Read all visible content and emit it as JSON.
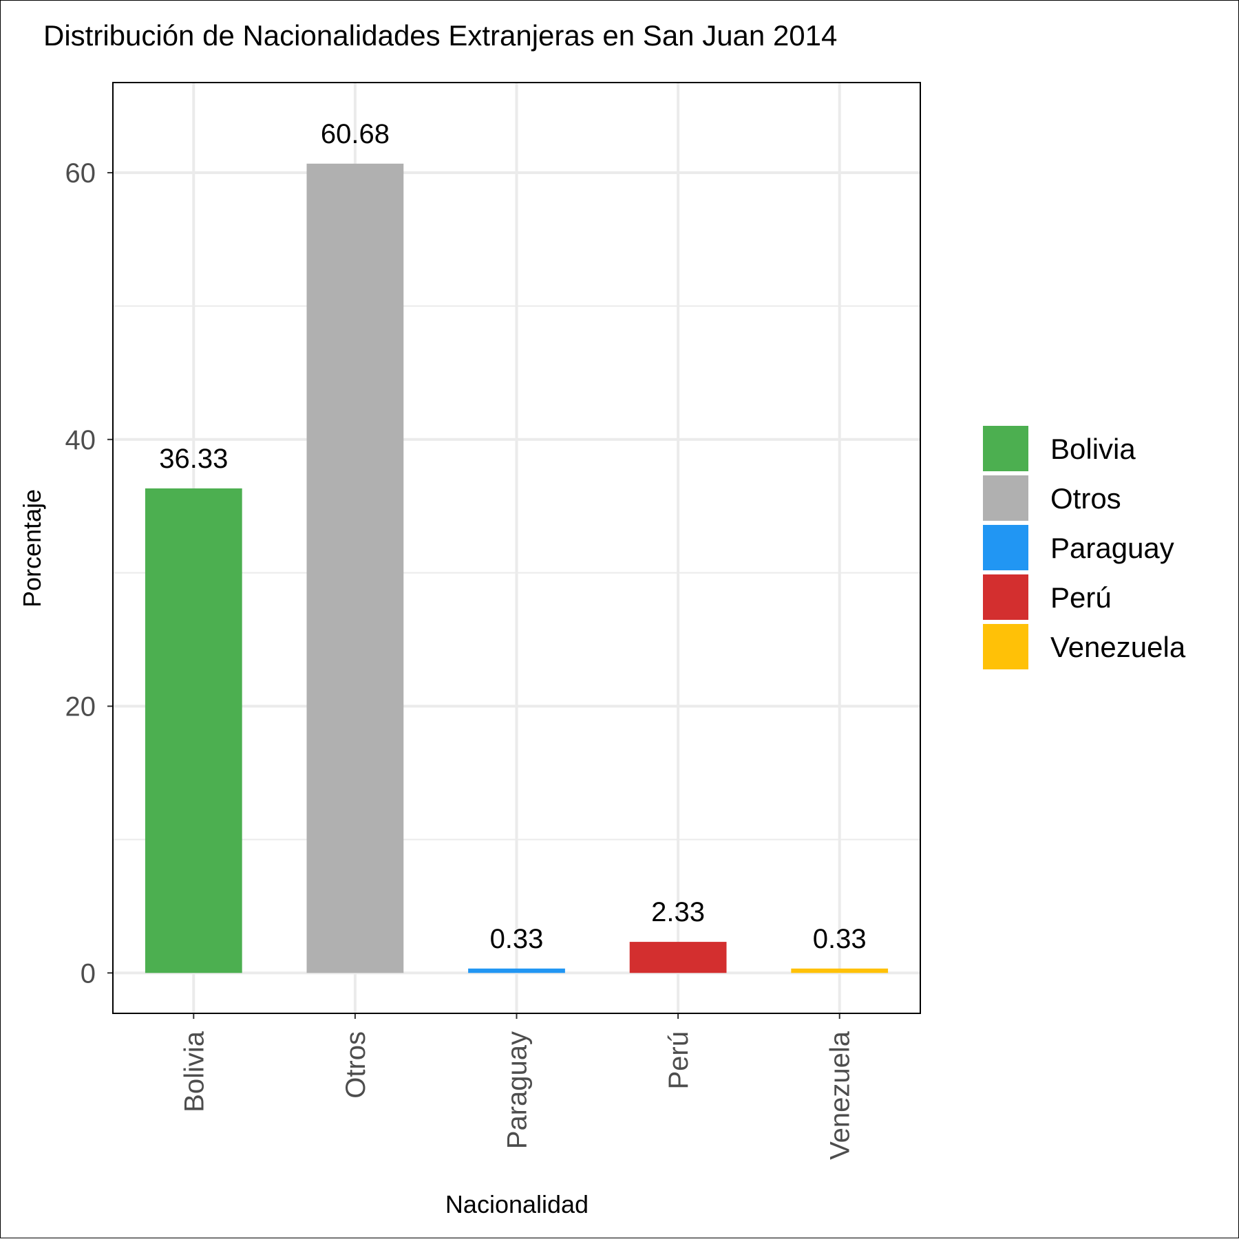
{
  "chart_data": {
    "type": "bar",
    "title": "Distribución de Nacionalidades Extranjeras en San Juan 2014",
    "xlabel": "Nacionalidad",
    "ylabel": "Porcentaje",
    "categories": [
      "Bolivia",
      "Otros",
      "Paraguay",
      "Perú",
      "Venezuela"
    ],
    "values": [
      36.33,
      60.68,
      0.33,
      2.33,
      0.33
    ],
    "data_labels": [
      "36.33",
      "60.68",
      "0.33",
      "2.33",
      "0.33"
    ],
    "colors": [
      "#4caf50",
      "#b0b0b0",
      "#2196f3",
      "#d32f2f",
      "#ffc107"
    ],
    "ylim": [
      -3.03,
      66.76
    ],
    "y_ticks": [
      0,
      20,
      40,
      60
    ],
    "y_tick_labels": [
      "0",
      "20",
      "40",
      "60"
    ],
    "y_minor_ticks": [
      10,
      30,
      50
    ],
    "grid": true,
    "legend": {
      "position": "right",
      "entries": [
        "Bolivia",
        "Otros",
        "Paraguay",
        "Perú",
        "Venezuela"
      ]
    }
  }
}
